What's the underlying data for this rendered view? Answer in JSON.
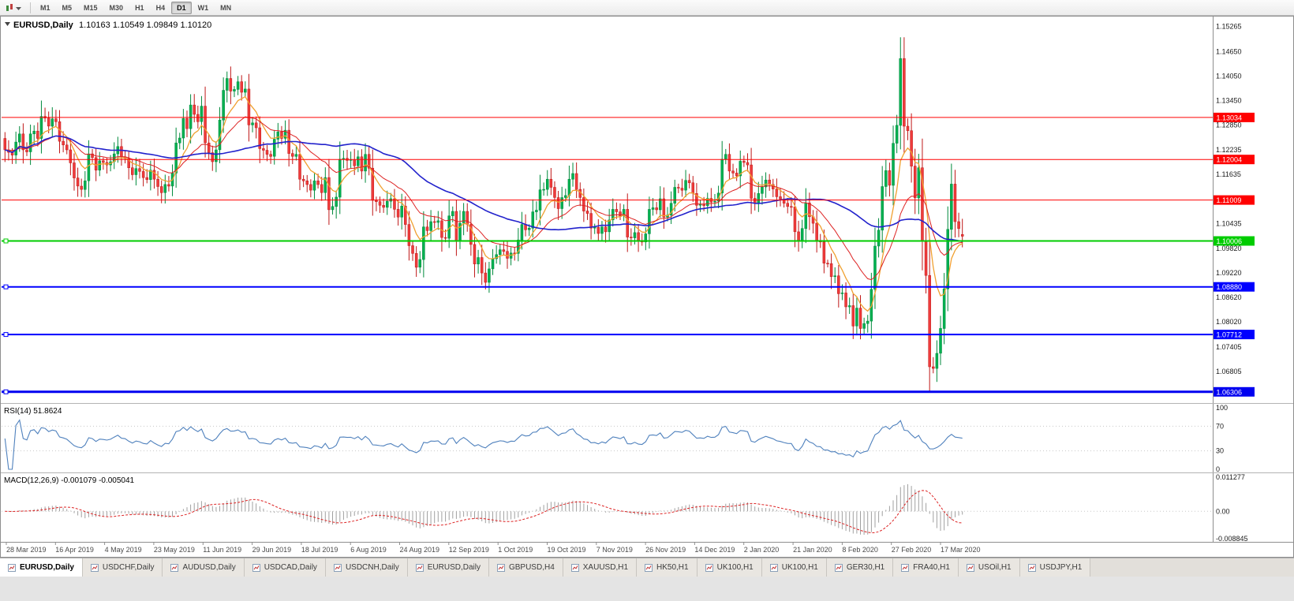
{
  "toolbar": {
    "timeframes": [
      {
        "label": "M1",
        "active": false
      },
      {
        "label": "M5",
        "active": false
      },
      {
        "label": "M15",
        "active": false
      },
      {
        "label": "M30",
        "active": false
      },
      {
        "label": "H1",
        "active": false
      },
      {
        "label": "H4",
        "active": false
      },
      {
        "label": "D1",
        "active": true
      },
      {
        "label": "W1",
        "active": false
      },
      {
        "label": "MN",
        "active": false
      }
    ]
  },
  "chart": {
    "symbol": "EURUSD,Daily",
    "ohlc": "1.10163 1.10549 1.09849 1.10120",
    "rsi_label": "RSI(14) 51.8624",
    "macd_label": "MACD(12,26,9) -0.001079 -0.005041"
  },
  "chart_data": {
    "type": "candlestick",
    "title": "EURUSD,Daily",
    "current_bar": {
      "open": 1.10163,
      "high": 1.10549,
      "low": 1.09849,
      "close": 1.1012
    },
    "price_range": [
      1.0605,
      1.1545
    ],
    "price_axis_labels": [
      "1.15265",
      "1.14650",
      "1.14050",
      "1.13450",
      "1.12850",
      "1.12235",
      "1.11635",
      "1.10435",
      "1.09820",
      "1.09220",
      "1.08620",
      "1.08020",
      "1.07405",
      "1.06805"
    ],
    "levels": [
      {
        "price": 1.13034,
        "label": "1.13034",
        "color": "#ff0000",
        "width": 1,
        "handles": false
      },
      {
        "price": 1.12004,
        "label": "1.12004",
        "color": "#ff0000",
        "width": 1,
        "handles": false
      },
      {
        "price": 1.11009,
        "label": "1.11009",
        "color": "#ff0000",
        "width": 1,
        "handles": false
      },
      {
        "price": 1.10006,
        "label": "1.10006",
        "color": "#00cc00",
        "width": 2,
        "handles": true
      },
      {
        "price": 1.0888,
        "label": "1.08880",
        "color": "#0000ff",
        "width": 2,
        "handles": true
      },
      {
        "price": 1.07712,
        "label": "1.07712",
        "color": "#0000ff",
        "width": 2,
        "handles": true
      },
      {
        "price": 1.06306,
        "label": "1.06306",
        "color": "#0000f0",
        "width": 3,
        "handles": true
      }
    ],
    "closes": [
      1.1224,
      1.1218,
      1.1211,
      1.1243,
      1.1263,
      1.1224,
      1.1219,
      1.1263,
      1.127,
      1.1252,
      1.1306,
      1.1302,
      1.1282,
      1.13,
      1.1293,
      1.1245,
      1.1236,
      1.1224,
      1.1192,
      1.1155,
      1.1135,
      1.1127,
      1.1148,
      1.1214,
      1.1205,
      1.1174,
      1.1197,
      1.1193,
      1.1187,
      1.1195,
      1.1214,
      1.1232,
      1.1207,
      1.1203,
      1.118,
      1.1163,
      1.1178,
      1.1171,
      1.1156,
      1.1151,
      1.1174,
      1.1152,
      1.1134,
      1.1119,
      1.1139,
      1.1135,
      1.1167,
      1.1241,
      1.1253,
      1.1301,
      1.1276,
      1.1334,
      1.1311,
      1.1293,
      1.1331,
      1.1241,
      1.1217,
      1.1195,
      1.1224,
      1.1297,
      1.137,
      1.1399,
      1.1368,
      1.1372,
      1.1391,
      1.1365,
      1.1373,
      1.1285,
      1.129,
      1.1278,
      1.1227,
      1.1223,
      1.1213,
      1.1208,
      1.125,
      1.1268,
      1.1252,
      1.1272,
      1.1215,
      1.1208,
      1.1213,
      1.1152,
      1.1148,
      1.1139,
      1.1125,
      1.1148,
      1.1139,
      1.1119,
      1.1156,
      1.1077,
      1.1085,
      1.1108,
      1.1201,
      1.1203,
      1.1198,
      1.12,
      1.1185,
      1.1207,
      1.1172,
      1.1213,
      1.1179,
      1.11,
      1.1097,
      1.1088,
      1.1083,
      1.1098,
      1.1104,
      1.1078,
      1.1059,
      1.1086,
      1.1041,
      1.0989,
      1.097,
      1.0936,
      1.0955,
      1.1035,
      1.1026,
      1.1048,
      1.1046,
      1.105,
      1.1009,
      1.1007,
      1.1062,
      1.1073,
      1.1001,
      1.1044,
      1.1073,
      1.1041,
      1.0992,
      1.0944,
      1.096,
      1.0922,
      1.0899,
      1.0932,
      1.0957,
      1.0967,
      1.0979,
      1.0975,
      1.0958,
      1.0971,
      1.097,
      1.1003,
      1.1041,
      1.1028,
      1.1032,
      1.1072,
      1.1076,
      1.1126,
      1.1127,
      1.1152,
      1.1132,
      1.1107,
      1.108,
      1.1107,
      1.1112,
      1.1152,
      1.1166,
      1.1127,
      1.1107,
      1.1074,
      1.1068,
      1.1032,
      1.1034,
      1.1019,
      1.1035,
      1.1023,
      1.1052,
      1.1078,
      1.1072,
      1.1062,
      1.1078,
      1.101,
      1.1008,
      1.1021,
      1.1001,
      1.0998,
      1.1018,
      1.1078,
      1.1082,
      1.1077,
      1.1104,
      1.1059,
      1.1064,
      1.1093,
      1.1132,
      1.113,
      1.1125,
      1.1149,
      1.1143,
      1.1117,
      1.1088,
      1.1091,
      1.1087,
      1.1105,
      1.1096,
      1.1098,
      1.1118,
      1.1201,
      1.1213,
      1.1172,
      1.1167,
      1.116,
      1.1196,
      1.1193,
      1.1187,
      1.1105,
      1.1093,
      1.1117,
      1.1133,
      1.115,
      1.1139,
      1.1128,
      1.1109,
      1.1103,
      1.1093,
      1.1085,
      1.1084,
      1.1023,
      1.1002,
      1.1031,
      1.1094,
      1.106,
      1.1044,
      1.1002,
      1.0998,
      1.0946,
      1.0945,
      1.0913,
      1.0915,
      1.0871,
      1.0873,
      1.0839,
      1.0842,
      1.0792,
      1.0836,
      1.0786,
      1.0798,
      1.0804,
      1.0882,
      1.0988,
      1.1027,
      1.1134,
      1.1173,
      1.1137,
      1.124,
      1.1284,
      1.1448,
      1.1282,
      1.1271,
      1.1184,
      1.1106,
      1.118,
      1.1,
      1.0916,
      1.0692,
      1.0688,
      1.0725,
      1.0786,
      1.0883,
      1.1029,
      1.114,
      1.1048,
      1.1031,
      1.1012
    ],
    "date_labels": [
      "28 Mar 2019",
      "16 Apr 2019",
      "4 May 2019",
      "23 May 2019",
      "11 Jun 2019",
      "29 Jun 2019",
      "18 Jul 2019",
      "6 Aug 2019",
      "24 Aug 2019",
      "12 Sep 2019",
      "1 Oct 2019",
      "19 Oct 2019",
      "7 Nov 2019",
      "26 Nov 2019",
      "14 Dec 2019",
      "2 Jan 2020",
      "21 Jan 2020",
      "8 Feb 2020",
      "27 Feb 2020",
      "17 Mar 2020"
    ],
    "candle_colors": {
      "up": "#00b050",
      "up_border": "#008a3c",
      "down": "#ef3b3b",
      "down_border": "#bf1818"
    },
    "indicators": {
      "moving_averages": [
        {
          "period": 8,
          "type": "ema",
          "color": "#f0a030",
          "width": 1.3
        },
        {
          "period": 21,
          "type": "ema",
          "color": "#dd2222",
          "width": 1
        },
        {
          "period": 50,
          "type": "sma",
          "color": "#2222cc",
          "width": 1.6
        }
      ],
      "rsi": {
        "period": 14,
        "last": 51.8624,
        "levels": [
          100,
          70,
          30,
          0
        ],
        "color": "#4f81bd"
      },
      "macd": {
        "fast": 12,
        "slow": 26,
        "signal": 9,
        "last_main": -0.001079,
        "last_signal": -0.005041,
        "range": [
          -0.008845,
          0.011277
        ],
        "axis_labels": [
          "0.011277",
          "0.00",
          "-0.008845"
        ],
        "histogram_color": "#a0a0a0",
        "signal_color": "#dd2222"
      }
    }
  },
  "tabs": [
    {
      "label": "EURUSD,Daily",
      "active": true
    },
    {
      "label": "USDCHF,Daily",
      "active": false
    },
    {
      "label": "AUDUSD,Daily",
      "active": false
    },
    {
      "label": "USDCAD,Daily",
      "active": false
    },
    {
      "label": "USDCNH,Daily",
      "active": false
    },
    {
      "label": "EURUSD,Daily",
      "active": false
    },
    {
      "label": "GBPUSD,H4",
      "active": false
    },
    {
      "label": "XAUUSD,H1",
      "active": false
    },
    {
      "label": "HK50,H1",
      "active": false
    },
    {
      "label": "UK100,H1",
      "active": false
    },
    {
      "label": "UK100,H1",
      "active": false
    },
    {
      "label": "GER30,H1",
      "active": false
    },
    {
      "label": "FRA40,H1",
      "active": false
    },
    {
      "label": "USOil,H1",
      "active": false
    },
    {
      "label": "USDJPY,H1",
      "active": false
    }
  ]
}
